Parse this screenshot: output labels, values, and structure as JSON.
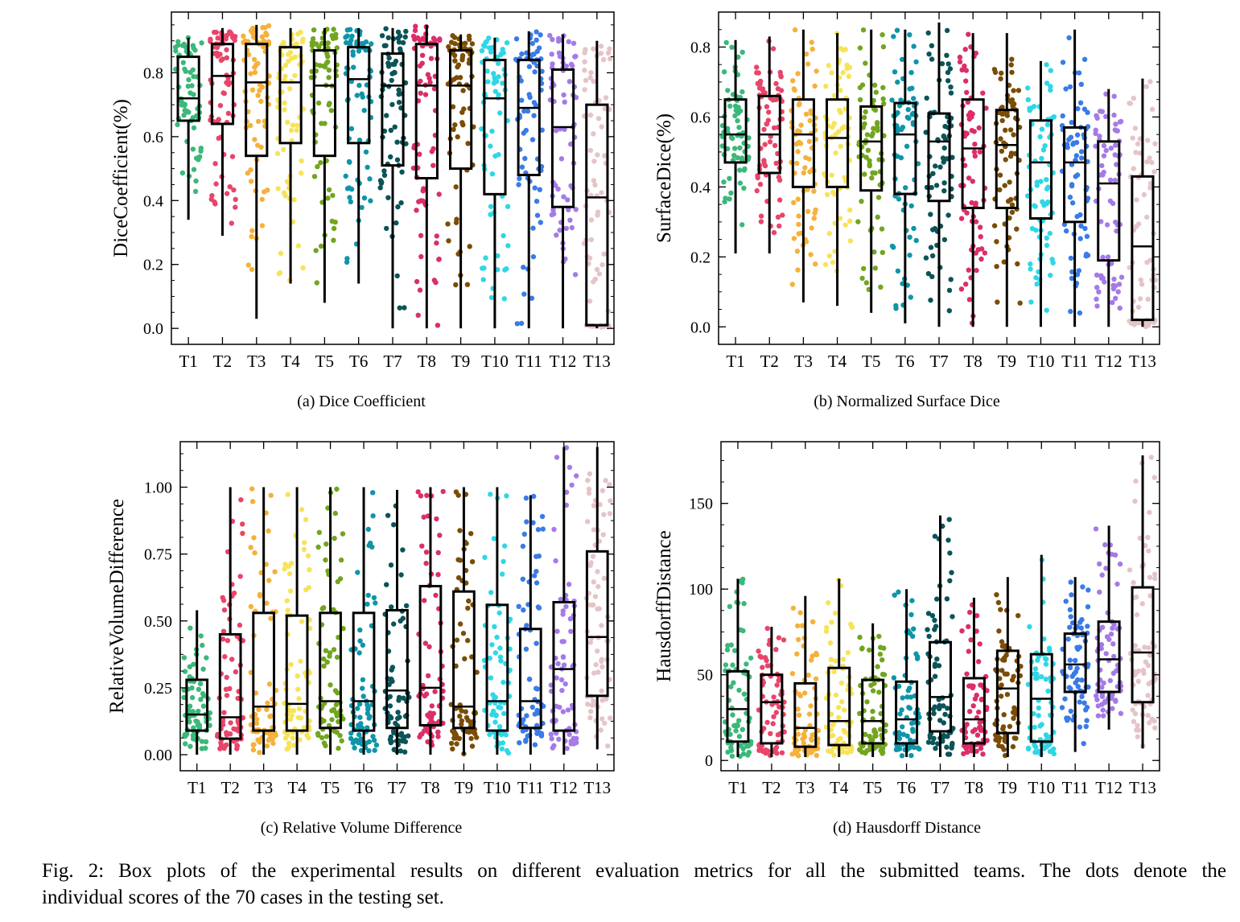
{
  "figure_caption": {
    "line1": "Fig. 2: Box plots of the experimental results on different evaluation metrics for all the submitted teams. The dots denote the",
    "line2": "individual scores of the 70 cases in the testing set."
  },
  "team_colors": [
    "#3cb87a",
    "#e8456a",
    "#f5b13b",
    "#f7e35a",
    "#72a520",
    "#0f95a8",
    "#0b5458",
    "#db2e6b",
    "#7a4d06",
    "#2fd7e6",
    "#3a7be6",
    "#a47be6",
    "#e5c4c8"
  ],
  "chart_data": [
    {
      "type": "box",
      "subcaption": "(a) Dice Coefficient",
      "ylabel": "DiceCoefficient(%)",
      "ylim": [
        -0.05,
        0.99
      ],
      "yticks": [
        0.0,
        0.2,
        0.4,
        0.6,
        0.8
      ],
      "ytick_labels": [
        "0.0",
        "0.2",
        "0.4",
        "0.6",
        "0.8"
      ],
      "categories": [
        "T1",
        "T2",
        "T3",
        "T4",
        "T5",
        "T6",
        "T7",
        "T8",
        "T9",
        "T10",
        "T11",
        "T12",
        "T13"
      ],
      "stats": [
        {
          "whislo": 0.34,
          "q1": 0.65,
          "med": 0.72,
          "q3": 0.85,
          "whishi": 0.91
        },
        {
          "whislo": 0.29,
          "q1": 0.64,
          "med": 0.79,
          "q3": 0.89,
          "whishi": 0.94
        },
        {
          "whislo": 0.03,
          "q1": 0.54,
          "med": 0.77,
          "q3": 0.89,
          "whishi": 0.95
        },
        {
          "whislo": 0.14,
          "q1": 0.58,
          "med": 0.77,
          "q3": 0.88,
          "whishi": 0.94
        },
        {
          "whislo": 0.08,
          "q1": 0.54,
          "med": 0.76,
          "q3": 0.87,
          "whishi": 0.94
        },
        {
          "whislo": 0.14,
          "q1": 0.58,
          "med": 0.78,
          "q3": 0.88,
          "whishi": 0.94
        },
        {
          "whislo": 0.0,
          "q1": 0.51,
          "med": 0.76,
          "q3": 0.86,
          "whishi": 0.94
        },
        {
          "whislo": 0.0,
          "q1": 0.47,
          "med": 0.76,
          "q3": 0.89,
          "whishi": 0.95
        },
        {
          "whislo": 0.0,
          "q1": 0.5,
          "med": 0.76,
          "q3": 0.87,
          "whishi": 0.92
        },
        {
          "whislo": 0.0,
          "q1": 0.42,
          "med": 0.72,
          "q3": 0.84,
          "whishi": 0.91
        },
        {
          "whislo": 0.0,
          "q1": 0.48,
          "med": 0.69,
          "q3": 0.84,
          "whishi": 0.93
        },
        {
          "whislo": 0.0,
          "q1": 0.38,
          "med": 0.63,
          "q3": 0.81,
          "whishi": 0.92
        },
        {
          "whislo": 0.0,
          "q1": 0.01,
          "med": 0.41,
          "q3": 0.7,
          "whishi": 0.9
        }
      ]
    },
    {
      "type": "box",
      "subcaption": "(b) Normalized Surface Dice",
      "ylabel": "SurfaceDice(%)",
      "ylim": [
        -0.05,
        0.9
      ],
      "yticks": [
        0.0,
        0.2,
        0.4,
        0.6,
        0.8
      ],
      "ytick_labels": [
        "0.0",
        "0.2",
        "0.4",
        "0.6",
        "0.8"
      ],
      "categories": [
        "T1",
        "T2",
        "T3",
        "T4",
        "T5",
        "T6",
        "T7",
        "T8",
        "T9",
        "T10",
        "T11",
        "T12",
        "T13"
      ],
      "stats": [
        {
          "whislo": 0.21,
          "q1": 0.47,
          "med": 0.55,
          "q3": 0.65,
          "whishi": 0.82
        },
        {
          "whislo": 0.21,
          "q1": 0.44,
          "med": 0.55,
          "q3": 0.66,
          "whishi": 0.83
        },
        {
          "whislo": 0.07,
          "q1": 0.4,
          "med": 0.55,
          "q3": 0.65,
          "whishi": 0.85
        },
        {
          "whislo": 0.06,
          "q1": 0.4,
          "med": 0.54,
          "q3": 0.65,
          "whishi": 0.84
        },
        {
          "whislo": 0.04,
          "q1": 0.39,
          "med": 0.53,
          "q3": 0.63,
          "whishi": 0.85
        },
        {
          "whislo": 0.01,
          "q1": 0.38,
          "med": 0.55,
          "q3": 0.64,
          "whishi": 0.85
        },
        {
          "whislo": 0.0,
          "q1": 0.36,
          "med": 0.53,
          "q3": 0.61,
          "whishi": 0.87
        },
        {
          "whislo": 0.0,
          "q1": 0.34,
          "med": 0.51,
          "q3": 0.65,
          "whishi": 0.84
        },
        {
          "whislo": 0.0,
          "q1": 0.34,
          "med": 0.52,
          "q3": 0.62,
          "whishi": 0.84
        },
        {
          "whislo": 0.0,
          "q1": 0.31,
          "med": 0.47,
          "q3": 0.59,
          "whishi": 0.76
        },
        {
          "whislo": 0.0,
          "q1": 0.3,
          "med": 0.47,
          "q3": 0.57,
          "whishi": 0.85
        },
        {
          "whislo": 0.0,
          "q1": 0.19,
          "med": 0.41,
          "q3": 0.53,
          "whishi": 0.68
        },
        {
          "whislo": 0.0,
          "q1": 0.02,
          "med": 0.23,
          "q3": 0.43,
          "whishi": 0.71
        }
      ]
    },
    {
      "type": "box",
      "subcaption": "(c) Relative Volume Difference",
      "ylabel": "RelativeVolumeDifference",
      "ylim": [
        -0.06,
        1.17
      ],
      "yticks": [
        0.0,
        0.25,
        0.5,
        0.75,
        1.0
      ],
      "ytick_labels": [
        "0.00",
        "0.25",
        "0.50",
        "0.75",
        "1.00"
      ],
      "categories": [
        "T1",
        "T2",
        "T3",
        "T4",
        "T5",
        "T6",
        "T7",
        "T8",
        "T9",
        "T10",
        "T11",
        "T12",
        "T13"
      ],
      "stats": [
        {
          "whislo": 0.0,
          "q1": 0.09,
          "med": 0.15,
          "q3": 0.28,
          "whishi": 0.54
        },
        {
          "whislo": 0.0,
          "q1": 0.06,
          "med": 0.14,
          "q3": 0.45,
          "whishi": 1.0
        },
        {
          "whislo": 0.0,
          "q1": 0.09,
          "med": 0.18,
          "q3": 0.53,
          "whishi": 1.0
        },
        {
          "whislo": 0.0,
          "q1": 0.09,
          "med": 0.19,
          "q3": 0.52,
          "whishi": 1.0
        },
        {
          "whislo": 0.0,
          "q1": 0.1,
          "med": 0.2,
          "q3": 0.53,
          "whishi": 1.0
        },
        {
          "whislo": 0.0,
          "q1": 0.09,
          "med": 0.2,
          "q3": 0.53,
          "whishi": 1.0
        },
        {
          "whislo": 0.0,
          "q1": 0.1,
          "med": 0.24,
          "q3": 0.54,
          "whishi": 0.99
        },
        {
          "whislo": 0.0,
          "q1": 0.11,
          "med": 0.25,
          "q3": 0.63,
          "whishi": 1.0
        },
        {
          "whislo": 0.0,
          "q1": 0.1,
          "med": 0.18,
          "q3": 0.61,
          "whishi": 1.0
        },
        {
          "whislo": 0.0,
          "q1": 0.09,
          "med": 0.2,
          "q3": 0.56,
          "whishi": 1.0
        },
        {
          "whislo": 0.0,
          "q1": 0.1,
          "med": 0.2,
          "q3": 0.47,
          "whishi": 0.97
        },
        {
          "whislo": 0.0,
          "q1": 0.09,
          "med": 0.32,
          "q3": 0.57,
          "whishi": 1.15
        },
        {
          "whislo": 0.02,
          "q1": 0.22,
          "med": 0.44,
          "q3": 0.76,
          "whishi": 1.15
        }
      ]
    },
    {
      "type": "box",
      "subcaption": "(d) Hausdorff Distance",
      "ylabel": "HausdorffDistance",
      "ylim": [
        -6,
        186
      ],
      "yticks": [
        0,
        50,
        100,
        150
      ],
      "ytick_labels": [
        "0",
        "50",
        "100",
        "150"
      ],
      "categories": [
        "T1",
        "T2",
        "T3",
        "T4",
        "T5",
        "T6",
        "T7",
        "T8",
        "T9",
        "T10",
        "T11",
        "T12",
        "T13"
      ],
      "stats": [
        {
          "whislo": 2,
          "q1": 11,
          "med": 30,
          "q3": 52,
          "whishi": 106
        },
        {
          "whislo": 2,
          "q1": 10,
          "med": 34,
          "q3": 50,
          "whishi": 78
        },
        {
          "whislo": 2,
          "q1": 8,
          "med": 19,
          "q3": 45,
          "whishi": 96
        },
        {
          "whislo": 2,
          "q1": 9,
          "med": 23,
          "q3": 54,
          "whishi": 106
        },
        {
          "whislo": 2,
          "q1": 10,
          "med": 23,
          "q3": 47,
          "whishi": 80
        },
        {
          "whislo": 2,
          "q1": 10,
          "med": 24,
          "q3": 46,
          "whishi": 100
        },
        {
          "whislo": 2,
          "q1": 17,
          "med": 37,
          "q3": 69,
          "whishi": 143
        },
        {
          "whislo": 2,
          "q1": 10,
          "med": 24,
          "q3": 48,
          "whishi": 95
        },
        {
          "whislo": 2,
          "q1": 16,
          "med": 42,
          "q3": 64,
          "whishi": 107
        },
        {
          "whislo": 2,
          "q1": 11,
          "med": 36,
          "q3": 62,
          "whishi": 120
        },
        {
          "whislo": 5,
          "q1": 40,
          "med": 56,
          "q3": 74,
          "whishi": 107
        },
        {
          "whislo": 18,
          "q1": 40,
          "med": 59,
          "q3": 81,
          "whishi": 137
        },
        {
          "whislo": 7,
          "q1": 34,
          "med": 63,
          "q3": 101,
          "whishi": 178
        }
      ]
    }
  ]
}
